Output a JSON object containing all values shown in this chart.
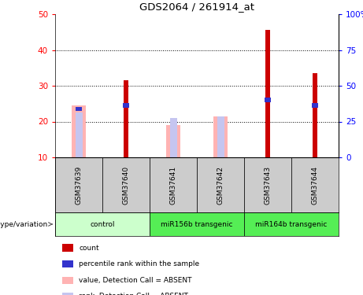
{
  "title": "GDS2064 / 261914_at",
  "samples": [
    "GSM37639",
    "GSM37640",
    "GSM37641",
    "GSM37642",
    "GSM37643",
    "GSM37644"
  ],
  "count_values": [
    0,
    31.5,
    0,
    0,
    45.5,
    33.5
  ],
  "percentile_values": [
    23.5,
    24.5,
    0,
    0,
    26.0,
    24.5
  ],
  "absent_value_bars": [
    24.5,
    0,
    19.0,
    21.5,
    0,
    0
  ],
  "absent_rank_bars": [
    22.5,
    0,
    21.0,
    21.5,
    0,
    0
  ],
  "count_color": "#cc0000",
  "percentile_color": "#3333cc",
  "absent_value_color": "#ffb3b3",
  "absent_rank_color": "#c5c5f0",
  "ylim": [
    10,
    50
  ],
  "y2lim": [
    0,
    100
  ],
  "yticks": [
    10,
    20,
    30,
    40,
    50
  ],
  "y2ticks": [
    0,
    25,
    50,
    75,
    100
  ],
  "grid_lines": [
    20,
    30,
    40
  ],
  "group_defs": [
    {
      "indices": [
        0,
        1
      ],
      "label": "control",
      "color": "#ccffcc"
    },
    {
      "indices": [
        2,
        3
      ],
      "label": "miR156b transgenic",
      "color": "#55ee55"
    },
    {
      "indices": [
        4,
        5
      ],
      "label": "miR164b transgenic",
      "color": "#55ee55"
    }
  ],
  "sample_bg_color": "#cccccc",
  "plot_bg_color": "#ffffff",
  "legend_items": [
    {
      "color": "#cc0000",
      "label": "count"
    },
    {
      "color": "#3333cc",
      "label": "percentile rank within the sample"
    },
    {
      "color": "#ffb3b3",
      "label": "value, Detection Call = ABSENT"
    },
    {
      "color": "#c5c5f0",
      "label": "rank, Detection Call = ABSENT"
    }
  ]
}
